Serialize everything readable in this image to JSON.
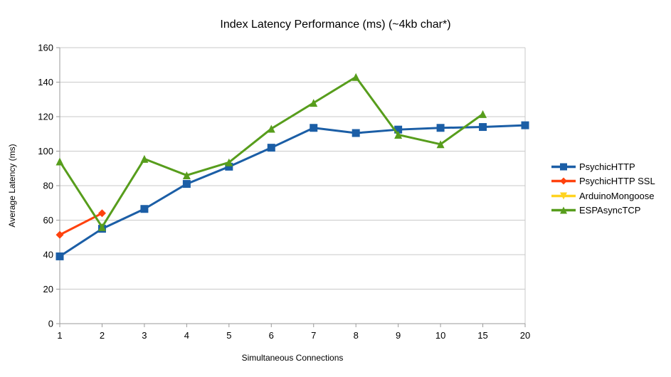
{
  "chart_data": {
    "type": "line",
    "title": "Index Latency Performance (ms) (~4kb char*)",
    "xlabel": "Simultaneous Connections",
    "ylabel": "Average Latency (ms)",
    "categories": [
      "1",
      "2",
      "3",
      "4",
      "5",
      "6",
      "7",
      "8",
      "9",
      "10",
      "15",
      "20"
    ],
    "ylim": [
      0,
      160
    ],
    "yticks": [
      0,
      20,
      40,
      60,
      80,
      100,
      120,
      140,
      160
    ],
    "grid": true,
    "legend_position": "right",
    "colors": {
      "grid_line": "#c9c9c9",
      "axis_line": "#9a9a9a",
      "text": "#000000",
      "background": "#ffffff"
    },
    "series": [
      {
        "name": "PsychicHTTP",
        "color": "#1b5ea6",
        "marker": "square",
        "values": [
          39,
          55,
          66.5,
          81,
          91,
          102,
          113.5,
          110.5,
          112.5,
          113.5,
          114,
          115
        ]
      },
      {
        "name": "PsychicHTTP SSL",
        "color": "#ff420e",
        "marker": "diamond",
        "values": [
          51.5,
          64,
          null,
          null,
          null,
          null,
          null,
          null,
          null,
          null,
          null,
          null
        ]
      },
      {
        "name": "ArduinoMongoose",
        "color": "#ffd320",
        "marker": "triangle-down",
        "values": [
          null,
          null,
          null,
          null,
          null,
          null,
          null,
          null,
          null,
          null,
          null,
          null
        ]
      },
      {
        "name": "ESPAsyncTCP",
        "color": "#579d1c",
        "marker": "triangle-up",
        "values": [
          94,
          56,
          95.5,
          86,
          93.5,
          113,
          128,
          143,
          109.5,
          104,
          121.5,
          null
        ]
      }
    ]
  }
}
